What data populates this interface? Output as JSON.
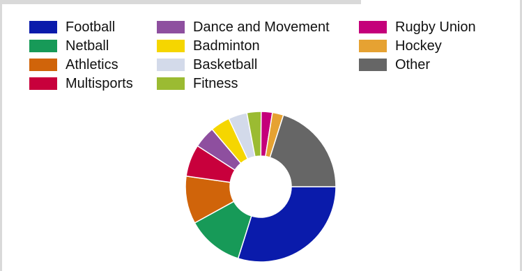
{
  "chart_data": {
    "type": "pie",
    "style": "donut",
    "legend_position": "top",
    "legend_columns": 3,
    "slices": [
      {
        "label": "Football",
        "value": 31.2,
        "color": "#0a1bab"
      },
      {
        "label": "Netball",
        "value": 12.7,
        "color": "#179a58"
      },
      {
        "label": "Athletics",
        "value": 10.7,
        "color": "#d0640a"
      },
      {
        "label": "Multisports",
        "value": 7.2,
        "color": "#c8003c"
      },
      {
        "label": "Dance and Movement",
        "value": 4.9,
        "color": "#8e4f9f"
      },
      {
        "label": "Badminton",
        "value": 4.4,
        "color": "#f5d600"
      },
      {
        "label": "Basketball",
        "value": 4.2,
        "color": "#d3daea"
      },
      {
        "label": "Fitness",
        "value": 3.2,
        "color": "#9bbb32"
      },
      {
        "label": "Rugby Union",
        "value": 2.5,
        "color": "#c4007a"
      },
      {
        "label": "Hockey",
        "value": 2.5,
        "color": "#e6a232"
      },
      {
        "label": "Other",
        "value": 21.0,
        "color": "#666666"
      }
    ]
  }
}
